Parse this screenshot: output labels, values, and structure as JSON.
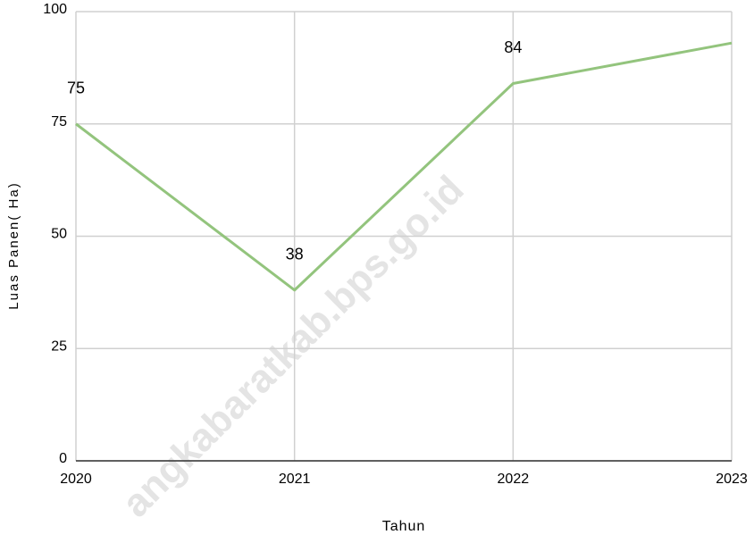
{
  "chart_data": {
    "type": "line",
    "x": [
      2020,
      2021,
      2022,
      2023
    ],
    "series": [
      {
        "name": "Luas Panen",
        "color": "#93c47d",
        "values": [
          75,
          38,
          84,
          93
        ],
        "value_labels": [
          "75",
          "38",
          "84",
          null
        ]
      }
    ],
    "xlim": [
      2020,
      2023
    ],
    "xticks": [
      2020,
      2021,
      2022,
      2023
    ],
    "ylim": [
      0,
      100
    ],
    "yticks": [
      0,
      25,
      50,
      75,
      100
    ],
    "x_label": "Tahun",
    "y_label": "Luas Panen( Ha)",
    "watermark": "angkabaratkab.bps.go.id",
    "grid": true
  }
}
